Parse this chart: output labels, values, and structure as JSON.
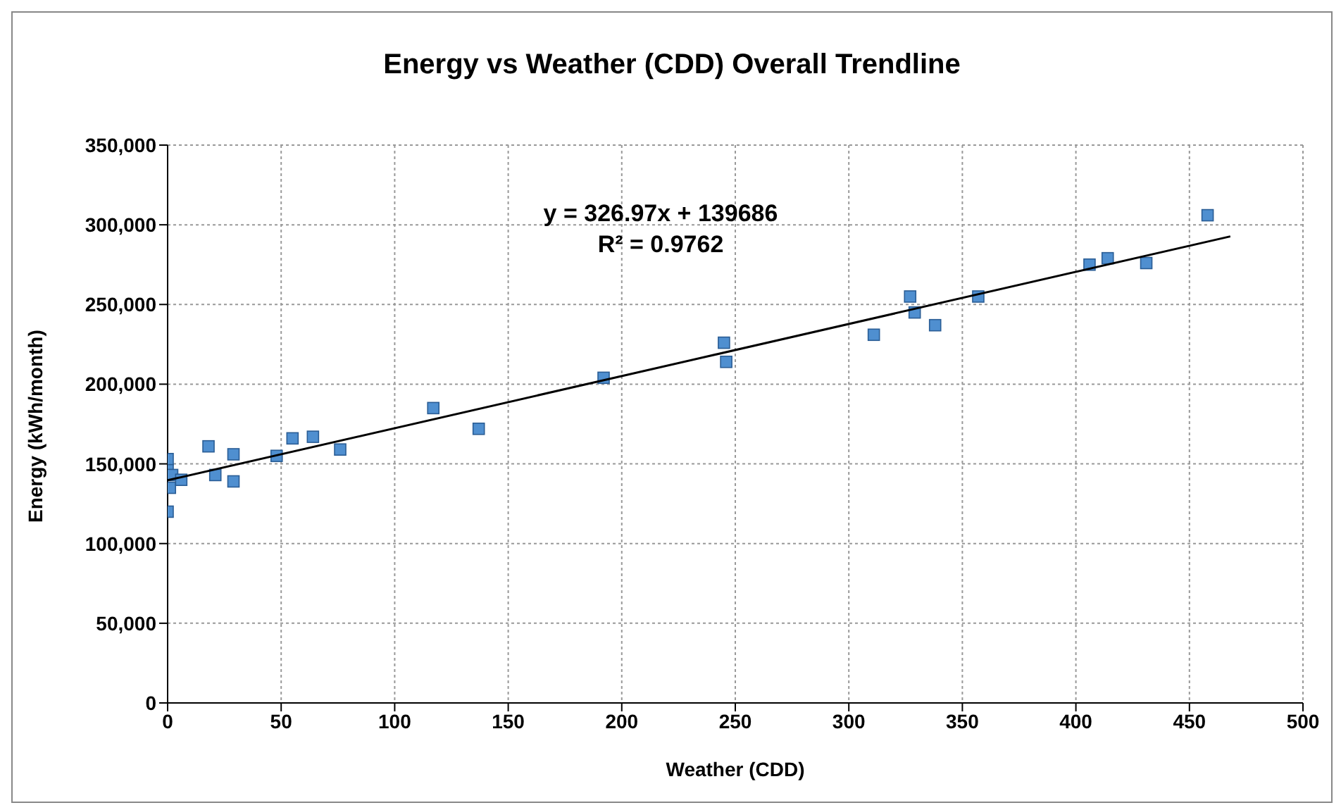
{
  "chart_data": {
    "type": "scatter",
    "title": "Energy vs Weather (CDD) Overall Trendline",
    "xlabel": "Weather (CDD)",
    "ylabel": "Energy (kWh/month)",
    "annotations": [
      "y = 326.97x + 139686",
      "R² = 0.9762"
    ],
    "xlim": [
      0,
      500
    ],
    "xticks": [
      0,
      50,
      100,
      150,
      200,
      250,
      300,
      350,
      400,
      450,
      500
    ],
    "ylim": [
      0,
      350000
    ],
    "yticks": [
      0,
      {
        "value": 50000,
        "label": "50,000"
      },
      {
        "value": 100000,
        "label": "100,000"
      },
      {
        "value": 150000,
        "label": "150,000"
      },
      {
        "value": 200000,
        "label": "200,000"
      },
      {
        "value": 250000,
        "label": "250,000"
      },
      {
        "value": 300000,
        "label": "300,000"
      },
      {
        "value": 350000,
        "label": "350,000"
      }
    ],
    "grid": true,
    "marker": "square",
    "series": [
      {
        "color": "#4f8fd0",
        "x": [
          0,
          0,
          0,
          2,
          1,
          6,
          18,
          21,
          29,
          29,
          48,
          55,
          64,
          76,
          117,
          137,
          192,
          245,
          246,
          311,
          327,
          329,
          338,
          357,
          406,
          414,
          431,
          458
        ],
        "values": [
          153000,
          146000,
          120000,
          143000,
          135000,
          140000,
          161000,
          143000,
          156000,
          139000,
          155000,
          166000,
          167000,
          159000,
          185000,
          172000,
          204000,
          226000,
          214000,
          231000,
          255000,
          245000,
          237000,
          255000,
          275000,
          279000,
          276000,
          306000
        ]
      },
      {
        "type": "line",
        "color": "#000000",
        "marker": "none",
        "line_style": "solid",
        "x": [
          0,
          468
        ],
        "values": [
          139700,
          292700
        ]
      }
    ]
  }
}
